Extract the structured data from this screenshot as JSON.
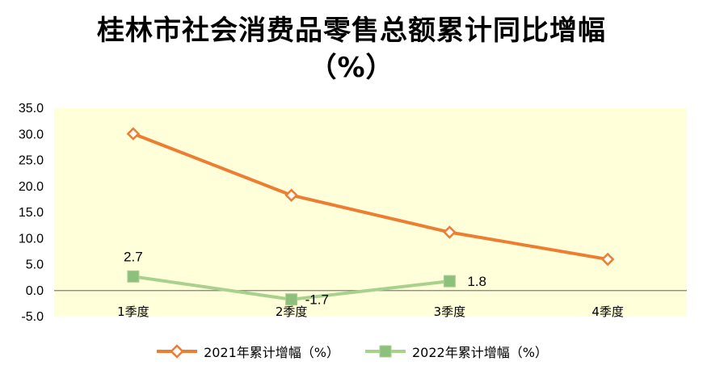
{
  "title": {
    "line1": "桂林市社会消费品零售总额累计同比增幅",
    "line2": "（%）"
  },
  "colors": {
    "plot_background": "#FFFFD9",
    "series_2021": "#ED7D31",
    "series_2022": "#A9D18E",
    "series_2022_marker": "#8DC07B",
    "zero_line": "#7F7F7F"
  },
  "chart_data": {
    "type": "line",
    "categories": [
      "1季度",
      "2季度",
      "3季度",
      "4季度"
    ],
    "ylim": [
      -5.0,
      35.0
    ],
    "yticks": [
      "35.0",
      "30.0",
      "25.0",
      "20.0",
      "15.0",
      "10.0",
      "5.0",
      "0.0",
      "-5.0"
    ],
    "grid": false,
    "legend": "bottom",
    "series": [
      {
        "name": "2021年累计增幅（%）",
        "values": [
          30.1,
          18.3,
          11.2,
          6.0
        ],
        "marker": "diamond",
        "data_labels": []
      },
      {
        "name": "2022年累计增幅（%）",
        "values": [
          2.7,
          -1.7,
          1.8,
          null
        ],
        "marker": "square",
        "data_labels": [
          "2.7",
          "-1.7",
          "1.8"
        ]
      }
    ]
  }
}
